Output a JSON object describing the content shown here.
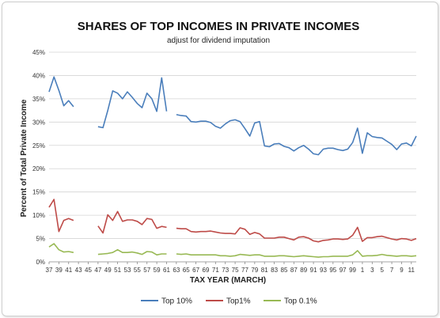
{
  "chart_data": {
    "type": "line",
    "title": "SHARES OF TOP INCOMES IN PRIVATE INCOMES",
    "subtitle": "adjust for dividend imputation",
    "xlabel": "TAX YEAR (MARCH)",
    "ylabel": "Percent of Total Private Income",
    "ylim": [
      0,
      45
    ],
    "y_ticks": [
      "0%",
      "5%",
      "10%",
      "15%",
      "20%",
      "25%",
      "30%",
      "35%",
      "40%",
      "45%"
    ],
    "x_tick_labels": [
      "37",
      "39",
      "41",
      "43",
      "45",
      "47",
      "49",
      "51",
      "53",
      "55",
      "57",
      "59",
      "61",
      "63",
      "65",
      "67",
      "69",
      "71",
      "73",
      "75",
      "77",
      "79",
      "81",
      "83",
      "85",
      "87",
      "89",
      "91",
      "93",
      "95",
      "97",
      "99",
      "1",
      "3",
      "5",
      "7",
      "9",
      "11"
    ],
    "x_years": [
      1937,
      1938,
      1939,
      1940,
      1941,
      1942,
      1943,
      1944,
      1945,
      1946,
      1947,
      1948,
      1949,
      1950,
      1951,
      1952,
      1953,
      1954,
      1955,
      1956,
      1957,
      1958,
      1959,
      1960,
      1961,
      1962,
      1963,
      1964,
      1965,
      1966,
      1967,
      1968,
      1969,
      1970,
      1971,
      1972,
      1973,
      1974,
      1975,
      1976,
      1977,
      1978,
      1979,
      1980,
      1981,
      1982,
      1983,
      1984,
      1985,
      1986,
      1987,
      1988,
      1989,
      1990,
      1991,
      1992,
      1993,
      1994,
      1995,
      1996,
      1997,
      1998,
      1999,
      2000,
      2001,
      2002,
      2003,
      2004,
      2005,
      2006,
      2007,
      2008,
      2009,
      2010,
      2011,
      2012
    ],
    "grid": true,
    "legend_position": "bottom",
    "series": [
      {
        "name": "Top 10%",
        "color": "#4a7ebb",
        "values": [
          36.5,
          39.7,
          36.8,
          33.5,
          34.6,
          33.3,
          null,
          null,
          null,
          null,
          29.0,
          28.8,
          32.5,
          36.7,
          36.2,
          35.0,
          36.5,
          35.3,
          34.0,
          33.1,
          36.2,
          35.0,
          32.3,
          39.5,
          32.3,
          null,
          31.6,
          31.4,
          31.3,
          30.1,
          30.0,
          30.2,
          30.2,
          29.9,
          29.1,
          28.7,
          29.6,
          30.3,
          30.5,
          30.1,
          28.6,
          27.0,
          29.8,
          30.1,
          24.9,
          24.7,
          25.3,
          25.4,
          24.8,
          24.5,
          23.8,
          24.5,
          25.0,
          24.2,
          23.2,
          23.0,
          24.2,
          24.4,
          24.4,
          24.1,
          23.9,
          24.2,
          25.6,
          28.7,
          23.3,
          27.7,
          26.9,
          26.7,
          26.6,
          25.9,
          25.2,
          24.1,
          25.3,
          25.5,
          24.9,
          27.0
        ]
      },
      {
        "name": "Top1%",
        "color": "#be4b48",
        "values": [
          11.7,
          13.4,
          6.5,
          8.9,
          9.3,
          8.9,
          null,
          null,
          null,
          null,
          7.7,
          6.2,
          10.1,
          8.9,
          10.8,
          8.7,
          9.0,
          9.0,
          8.7,
          8.0,
          9.3,
          9.1,
          7.2,
          7.6,
          7.4,
          null,
          7.2,
          7.1,
          7.1,
          6.5,
          6.4,
          6.5,
          6.5,
          6.6,
          6.4,
          6.2,
          6.1,
          6.1,
          6.0,
          7.3,
          7.0,
          5.9,
          6.3,
          6.0,
          5.1,
          5.1,
          5.1,
          5.3,
          5.3,
          5.0,
          4.7,
          5.3,
          5.4,
          5.1,
          4.5,
          4.3,
          4.6,
          4.7,
          4.9,
          4.9,
          4.8,
          4.9,
          5.7,
          7.4,
          4.4,
          5.2,
          5.2,
          5.4,
          5.5,
          5.2,
          4.9,
          4.7,
          5.0,
          4.9,
          4.6,
          5.0
        ]
      },
      {
        "name": "Top 0.1%",
        "color": "#98b954",
        "values": [
          3.2,
          3.9,
          2.6,
          2.1,
          2.2,
          2.0,
          null,
          null,
          null,
          null,
          1.6,
          1.7,
          1.8,
          2.0,
          2.6,
          2.0,
          2.0,
          2.1,
          1.9,
          1.6,
          2.2,
          2.1,
          1.5,
          1.7,
          1.7,
          null,
          1.7,
          1.6,
          1.7,
          1.5,
          1.5,
          1.5,
          1.5,
          1.5,
          1.5,
          1.3,
          1.3,
          1.2,
          1.3,
          1.6,
          1.5,
          1.4,
          1.5,
          1.5,
          1.2,
          1.2,
          1.2,
          1.3,
          1.3,
          1.2,
          1.1,
          1.2,
          1.3,
          1.2,
          1.1,
          1.0,
          1.1,
          1.1,
          1.2,
          1.2,
          1.2,
          1.2,
          1.5,
          2.4,
          1.2,
          1.3,
          1.3,
          1.4,
          1.6,
          1.4,
          1.3,
          1.2,
          1.3,
          1.3,
          1.2,
          1.3
        ]
      }
    ]
  }
}
